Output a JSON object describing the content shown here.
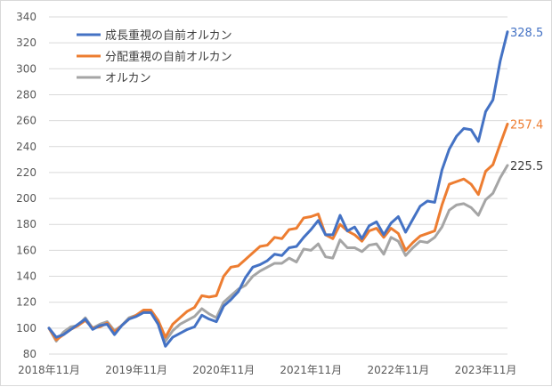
{
  "chart_data": {
    "type": "line",
    "title": "",
    "xlabel": "",
    "ylabel": "",
    "ylim": [
      80,
      340
    ],
    "yticks": [
      80,
      100,
      120,
      140,
      160,
      180,
      200,
      220,
      240,
      260,
      280,
      300,
      320,
      340
    ],
    "grid": "horizontal",
    "legend_position": "top-left",
    "x_tick_labels": [
      "2018年11月",
      "2019年11月",
      "2020年11月",
      "2021年11月",
      "2022年11月",
      "2023年11月"
    ],
    "x_tick_index": [
      0,
      12,
      24,
      36,
      48,
      60
    ],
    "series": [
      {
        "name": "成長重視の自前オルカン",
        "color": "#4472C4",
        "end_label": "328.5",
        "values": [
          100,
          93,
          95,
          99,
          103,
          107,
          99,
          102,
          103,
          95,
          102,
          107,
          109,
          112,
          112,
          103,
          86,
          93,
          96,
          99,
          101,
          110,
          107,
          105,
          117,
          122,
          128,
          139,
          147,
          149,
          152,
          157,
          156,
          162,
          163,
          170,
          176,
          183,
          172,
          172,
          187,
          175,
          178,
          169,
          179,
          182,
          172,
          181,
          186,
          174,
          184,
          194,
          198,
          197,
          222,
          238,
          248,
          254,
          253,
          244,
          267,
          276,
          306,
          328.5
        ]
      },
      {
        "name": "分配重視の自前オルカン",
        "color": "#ED7D31",
        "end_label": "257.4",
        "values": [
          100,
          91,
          95,
          99,
          102,
          106,
          100,
          101,
          104,
          97,
          102,
          107,
          110,
          114,
          114,
          106,
          93,
          103,
          108,
          113,
          116,
          125,
          124,
          125,
          140,
          147,
          148,
          153,
          158,
          163,
          164,
          170,
          169,
          176,
          177,
          185,
          186,
          188,
          172,
          169,
          180,
          175,
          172,
          167,
          175,
          177,
          170,
          177,
          173,
          160,
          166,
          171,
          173,
          175,
          195,
          211,
          213,
          215,
          211,
          203,
          221,
          226,
          242,
          257.4
        ]
      },
      {
        "name": "オルカン",
        "color": "#A5A5A5",
        "end_label": "225.5",
        "values": [
          100,
          90,
          97,
          101,
          102,
          108,
          100,
          103,
          105,
          98,
          102,
          108,
          110,
          113,
          113,
          104,
          90,
          98,
          103,
          106,
          109,
          115,
          111,
          108,
          120,
          125,
          130,
          133,
          140,
          144,
          147,
          150,
          150,
          154,
          151,
          161,
          160,
          165,
          155,
          154,
          168,
          162,
          162,
          159,
          164,
          165,
          157,
          170,
          167,
          156,
          162,
          167,
          166,
          170,
          178,
          191,
          195,
          196,
          193,
          187,
          199,
          204,
          216,
          225.5
        ]
      }
    ]
  }
}
